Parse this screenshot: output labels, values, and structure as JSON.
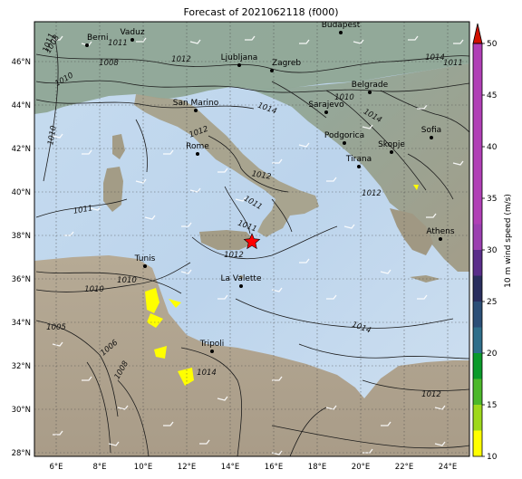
{
  "title": "Forecast of 2021062118 (f000)",
  "colorbar": {
    "label": "10 m wind speed (m/s)",
    "ticks": [
      "10",
      "15",
      "20",
      "25",
      "30",
      "35",
      "40",
      "45",
      "50"
    ],
    "colors": [
      "#ffff00",
      "#9ed81b",
      "#4cb82a",
      "#0a9a2a",
      "#2f6f8a",
      "#2c4f77",
      "#2a2e5e",
      "#5a2d8a",
      "#9b3fb0",
      "#b03fb6"
    ],
    "extend_color": "#d11000"
  },
  "axes": {
    "lon_labels": [
      "6°E",
      "8°E",
      "10°E",
      "12°E",
      "14°E",
      "16°E",
      "18°E",
      "20°E",
      "22°E",
      "24°E"
    ],
    "lat_labels": [
      "46°N",
      "44°N",
      "42°N",
      "40°N",
      "38°N",
      "36°N",
      "34°N",
      "32°N",
      "30°N",
      "28°N"
    ]
  },
  "cities": [
    {
      "name": "Berni"
    },
    {
      "name": "Vaduz"
    },
    {
      "name": "Budapest"
    },
    {
      "name": "Ljubljana"
    },
    {
      "name": "Zagreb"
    },
    {
      "name": "Belgrade"
    },
    {
      "name": "Sarajevo"
    },
    {
      "name": "San Marino"
    },
    {
      "name": "Rome"
    },
    {
      "name": "Podgorica"
    },
    {
      "name": "Skopje"
    },
    {
      "name": "Sofia"
    },
    {
      "name": "Tirana"
    },
    {
      "name": "Athens"
    },
    {
      "name": "Tunis"
    },
    {
      "name": "La Valette"
    },
    {
      "name": "Tripoli"
    }
  ],
  "isobar_labels": [
    "1008",
    "1010",
    "1011",
    "1012",
    "1014",
    "1005",
    "1006",
    "1008",
    "1010",
    "1010",
    "1011",
    "1012",
    "1012",
    "1014",
    "1014",
    "1012",
    "1011",
    "1011",
    "1012",
    "1014",
    "1011",
    "1008",
    "1010",
    "1011",
    "1012",
    "1014",
    "1010"
  ],
  "marker": "red-star"
}
